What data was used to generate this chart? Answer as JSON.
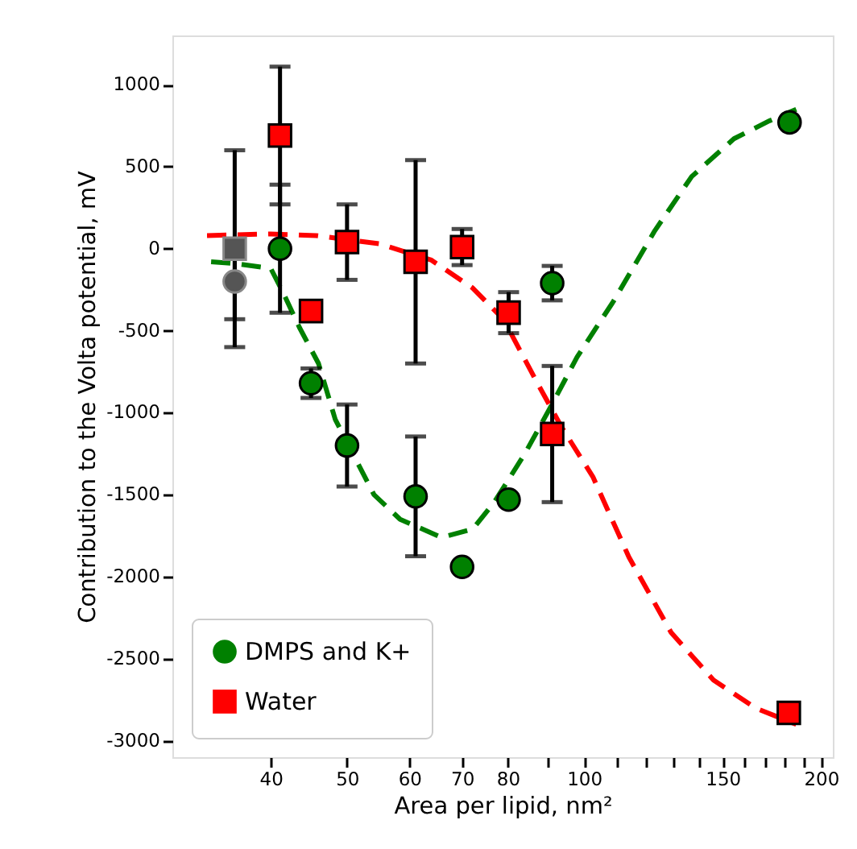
{
  "chart_data": {
    "type": "scatter",
    "xlabel": "Area per lipid, nm²",
    "ylabel": "Contribution to the Volta potential, mV",
    "log": "x",
    "xlim": [
      30,
      207
    ],
    "ylim": [
      -3100,
      1300
    ],
    "xticks": [
      40,
      50,
      60,
      70,
      80,
      {
        "value": 90,
        "label": null
      },
      100,
      {
        "value": 110,
        "label": null
      },
      {
        "value": 120,
        "label": null
      },
      {
        "value": 130,
        "label": null
      },
      {
        "value": 140,
        "label": null
      },
      150,
      {
        "value": 160,
        "label": null
      },
      {
        "value": 170,
        "label": null
      },
      {
        "value": 180,
        "label": null
      },
      {
        "value": 190,
        "label": null
      },
      200
    ],
    "yticks": [
      -3000,
      -2500,
      -2000,
      -1500,
      -1000,
      -500,
      0,
      500,
      1000
    ],
    "grid": false,
    "legend": "bottom left",
    "series": [
      {
        "type": "line",
        "color": "#008000",
        "line_style": "dashed",
        "x": [
          33.6,
          36,
          40,
          41.5,
          43.5,
          46,
          48.3,
          54.1,
          58.4,
          65.9,
          72.2,
          76.8,
          84.1,
          90.8,
          98,
          109,
          123,
          137,
          155,
          172,
          186
        ],
        "values": [
          -80,
          -90,
          -120,
          -270,
          -480,
          -700,
          -1040,
          -1500,
          -1650,
          -1760,
          -1710,
          -1550,
          -1250,
          -960,
          -660,
          -320,
          110,
          440,
          670,
          780,
          850
        ]
      },
      {
        "type": "line",
        "color": "#ff0000",
        "line_style": "dashed",
        "x": [
          33.2,
          40,
          45.7,
          54.9,
          64,
          72.2,
          79,
          86.8,
          93.7,
          102.6,
          114,
          129,
          146,
          165,
          186
        ],
        "values": [
          80,
          90,
          80,
          30,
          -70,
          -240,
          -430,
          -800,
          -1090,
          -1390,
          -1880,
          -2340,
          -2630,
          -2800,
          -2900
        ]
      },
      {
        "color": "#555555",
        "marker": "circle",
        "x": [
          36
        ],
        "values": [
          -200
        ],
        "errors": [
          230
        ]
      },
      {
        "color": "#555555",
        "marker": "square",
        "x": [
          36
        ],
        "values": [
          0
        ],
        "errors": [
          600
        ]
      },
      {
        "name": "DMPS and K+",
        "color": "#008000",
        "marker": "circle",
        "x": [
          41.1,
          45,
          50,
          61.1,
          70,
          80.2,
          91.1,
          182.4
        ],
        "values": [
          0,
          -820,
          -1200,
          -1510,
          -1940,
          -1530,
          -210,
          770
        ],
        "errors": [
          390,
          90,
          250,
          365,
          null,
          null,
          105,
          null
        ]
      },
      {
        "name": "Water",
        "color": "#ff0000",
        "marker": "square",
        "x": [
          41.1,
          45,
          50,
          61.1,
          70,
          80.2,
          91.1,
          182
        ],
        "values": [
          690,
          -380,
          40,
          -80,
          10,
          -390,
          -1130,
          -2830
        ],
        "errors": [
          420,
          null,
          230,
          620,
          110,
          125,
          415,
          null
        ]
      }
    ]
  }
}
